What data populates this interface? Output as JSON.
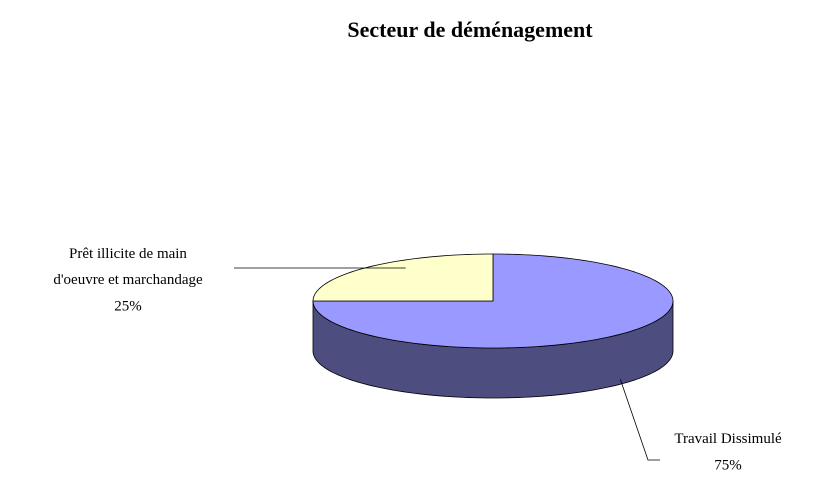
{
  "chart_data": {
    "type": "pie3d",
    "title": "Secteur de déménagement",
    "categories": [
      "Travail Dissimulé",
      "Prêt illicite de main d'oeuvre et marchandage"
    ],
    "values": [
      75,
      25
    ],
    "value_labels": [
      "75%",
      "25%"
    ],
    "colors": [
      "#9999ff",
      "#ffffcc"
    ]
  }
}
